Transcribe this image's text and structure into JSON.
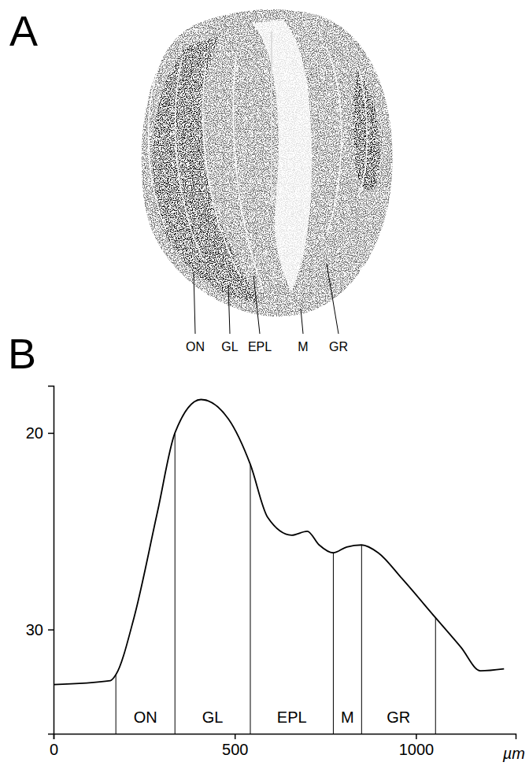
{
  "figure": {
    "panels": [
      {
        "letter": "A",
        "type": "image",
        "labels": [
          "ON",
          "GL",
          "EPL",
          "M",
          "GR"
        ]
      }
    ]
  },
  "chart_data": {
    "type": "line",
    "letter": "B",
    "x_label": "µm",
    "x": [
      0,
      157,
      172,
      222,
      287,
      335,
      407,
      483,
      543,
      591,
      657,
      700,
      733,
      772,
      809,
      850,
      896,
      961,
      1054,
      1124,
      1178,
      1243
    ],
    "values": [
      32.8,
      32.6,
      32.3,
      29.4,
      24.0,
      20.0,
      18.3,
      19.3,
      21.6,
      24.3,
      25.2,
      25.0,
      25.7,
      26.1,
      25.8,
      25.7,
      26.1,
      27.4,
      29.4,
      30.9,
      32.1,
      32.0
    ],
    "color": "#000000",
    "xlim": [
      0,
      1275
    ],
    "xticks": [
      0,
      500,
      1000
    ],
    "ylim": [
      35.3,
      17.6
    ],
    "yticks": [
      20,
      30
    ],
    "regions": [
      {
        "label": "ON",
        "start": 172,
        "end": 335
      },
      {
        "label": "GL",
        "start": 335,
        "end": 543
      },
      {
        "label": "EPL",
        "start": 543,
        "end": 772
      },
      {
        "label": "M",
        "start": 772,
        "end": 850
      },
      {
        "label": "GR",
        "start": 850,
        "end": 1054
      }
    ],
    "grid": false
  }
}
